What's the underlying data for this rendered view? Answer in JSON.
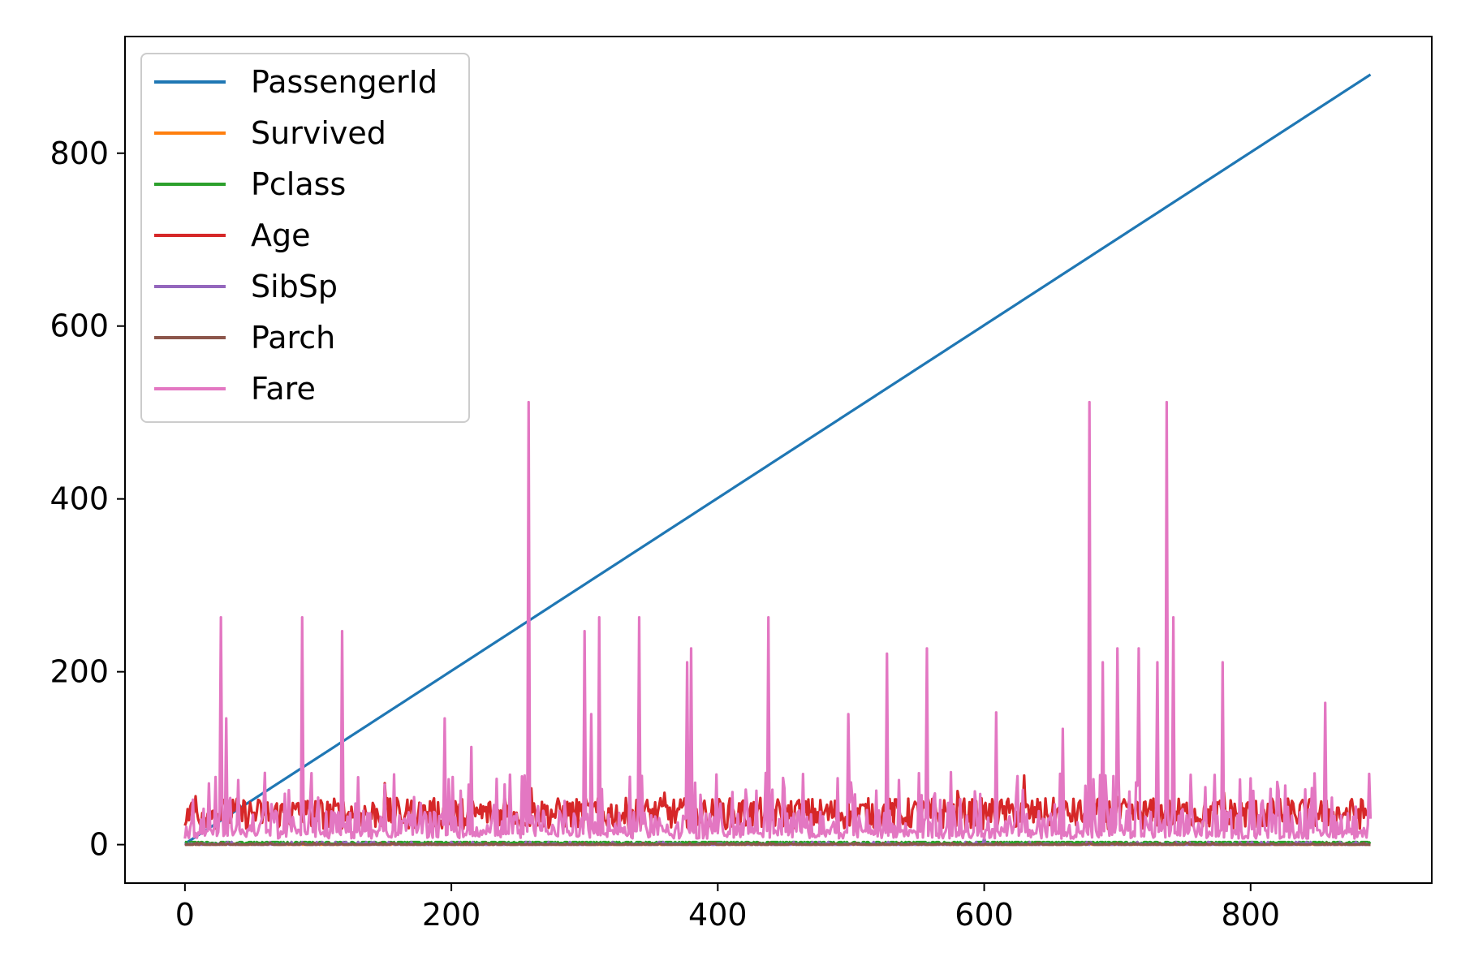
{
  "chart_data": {
    "type": "line",
    "title": "",
    "xlabel": "",
    "ylabel": "",
    "xlim": [
      -45,
      936
    ],
    "ylim": [
      -44.5,
      935
    ],
    "xticks": [
      0,
      200,
      400,
      600,
      800
    ],
    "yticks": [
      0,
      200,
      400,
      600,
      800
    ],
    "grid": false,
    "legend_position": "top-left",
    "n_points": 891,
    "series": [
      {
        "name": "PassengerId",
        "color": "#1f77b4",
        "values_description": "index + 1",
        "x": [
          0,
          890
        ],
        "y": [
          1,
          891
        ]
      },
      {
        "name": "Survived",
        "color": "#ff7f0e",
        "x": [
          0,
          100,
          200,
          300,
          400,
          500,
          600,
          700,
          800,
          890
        ],
        "y": [
          0,
          1,
          0,
          1,
          0,
          1,
          0,
          1,
          0,
          0
        ]
      },
      {
        "name": "Pclass",
        "color": "#2ca02c",
        "x": [
          0,
          100,
          200,
          300,
          400,
          500,
          600,
          700,
          800,
          890
        ],
        "y": [
          3,
          1,
          3,
          2,
          3,
          1,
          3,
          2,
          3,
          3
        ]
      },
      {
        "name": "Age",
        "color": "#d62728",
        "x": [
          0,
          8,
          20,
          40,
          60,
          90,
          120,
          150,
          180,
          210,
          240,
          260,
          300,
          330,
          360,
          400,
          430,
          460,
          500,
          540,
          580,
          620,
          630,
          660,
          700,
          740,
          780,
          820,
          860,
          890
        ],
        "y": [
          22,
          56,
          30,
          40,
          35,
          50,
          28,
          71,
          45,
          30,
          55,
          65,
          48,
          25,
          60,
          35,
          42,
          50,
          38,
          30,
          62,
          45,
          80,
          40,
          55,
          28,
          60,
          45,
          38,
          32
        ]
      },
      {
        "name": "SibSp",
        "color": "#9467bd",
        "x": [
          0,
          100,
          200,
          300,
          400,
          500,
          600,
          700,
          800,
          890
        ],
        "y": [
          1,
          0,
          3,
          0,
          1,
          0,
          8,
          0,
          1,
          0
        ]
      },
      {
        "name": "Parch",
        "color": "#8c564b",
        "x": [
          0,
          100,
          200,
          300,
          400,
          500,
          600,
          700,
          800,
          890
        ],
        "y": [
          0,
          1,
          0,
          2,
          0,
          1,
          0,
          2,
          0,
          0
        ]
      },
      {
        "name": "Fare",
        "color": "#e377c2",
        "x": [
          0,
          27,
          31,
          60,
          88,
          118,
          130,
          195,
          215,
          258,
          300,
          305,
          311,
          341,
          377,
          380,
          438,
          498,
          527,
          557,
          609,
          659,
          679,
          689,
          700,
          716,
          730,
          737,
          742,
          779,
          856,
          890
        ],
        "y": [
          7,
          263,
          146,
          83,
          263,
          247,
          78,
          146,
          113,
          512,
          247,
          151,
          263,
          263,
          211,
          227,
          263,
          151,
          221,
          227,
          153,
          134,
          512,
          211,
          227,
          227,
          211,
          512,
          263,
          211,
          164,
          30
        ]
      }
    ]
  }
}
